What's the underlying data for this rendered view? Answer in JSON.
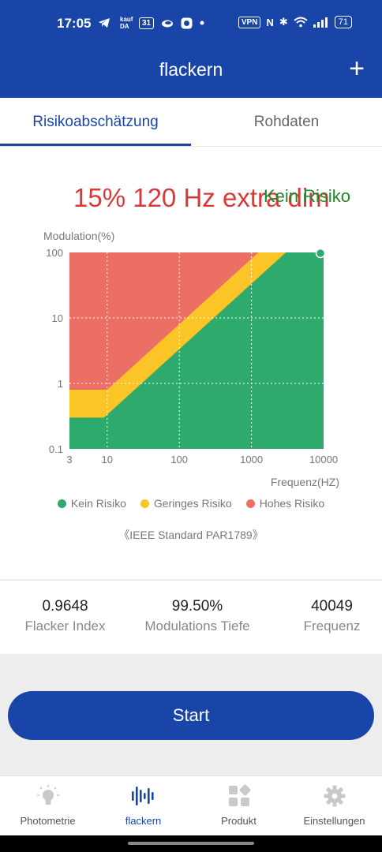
{
  "status_bar": {
    "time": "17:05",
    "left_icons": [
      "telegram-icon",
      "kaufda-icon",
      "calendar-icon",
      "cloud-icon",
      "app-icon",
      "dot-icon"
    ],
    "kaufda": "kauf DA",
    "calendar_day": "31",
    "vpn": "VPN",
    "nfc": "N",
    "bluetooth": "✱",
    "wifi": "◠",
    "signal": "▂▄▆█",
    "battery": "71"
  },
  "app_bar": {
    "title": "flackern",
    "add_symbol": "+"
  },
  "tabs": [
    {
      "label": "Risikoabschätzung",
      "active": true
    },
    {
      "label": "Rohdaten",
      "active": false
    }
  ],
  "measurement": {
    "headline": "15% 120 Hz extra dim",
    "risk_label": "Kein Risiko"
  },
  "chart_data": {
    "type": "area",
    "ylabel": "Modulation(%)",
    "xlabel": "Frequenz(HZ)",
    "x_scale": "log",
    "y_scale": "log",
    "x_ticks": [
      "3",
      "10",
      "100",
      "1000",
      "10000"
    ],
    "y_ticks": [
      "0.1",
      "1",
      "10",
      "100"
    ],
    "xlim": [
      3,
      10000
    ],
    "ylim": [
      0.1,
      100
    ],
    "regions": [
      {
        "name": "Hohes Risiko",
        "color": "#ec6f66"
      },
      {
        "name": "Geringes Risiko",
        "color": "#fcc527"
      },
      {
        "name": "Kein Risiko",
        "color": "#2eaa6d"
      }
    ],
    "low_risk_boundary": [
      [
        3,
        0.3
      ],
      [
        9,
        0.3
      ],
      [
        10000,
        333
      ]
    ],
    "high_risk_boundary": [
      [
        3,
        0.8
      ],
      [
        10,
        0.8
      ],
      [
        10000,
        800
      ]
    ],
    "measured_point": {
      "x": 10000,
      "y": 100
    },
    "grid": true,
    "legend": "bottom"
  },
  "legend": [
    {
      "label": "Kein Risiko",
      "color": "#2eaa6d"
    },
    {
      "label": "Geringes Risiko",
      "color": "#fcc527"
    },
    {
      "label": "Hohes Risiko",
      "color": "#ec6f66"
    }
  ],
  "standard_note": "《IEEE Standard PAR1789》",
  "stats": [
    {
      "value": "0.9648",
      "label": "Flacker Index"
    },
    {
      "value": "99.50%",
      "label": "Modulations Tiefe"
    },
    {
      "value": "40049",
      "label": "Frequenz"
    }
  ],
  "start_button": {
    "label": "Start"
  },
  "bottom_nav": [
    {
      "label": "Photometrie",
      "icon": "lightbulb-icon",
      "active": false
    },
    {
      "label": "flackern",
      "icon": "waveform-icon",
      "active": true
    },
    {
      "label": "Produkt",
      "icon": "grid-icon",
      "active": false
    },
    {
      "label": "Einstellungen",
      "icon": "gear-icon",
      "active": false
    }
  ]
}
